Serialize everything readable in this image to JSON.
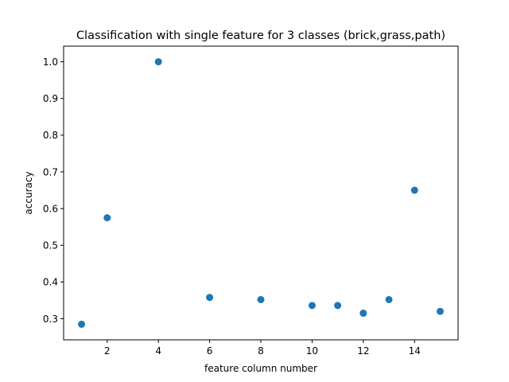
{
  "chart_data": {
    "type": "scatter",
    "title": "Classification with single feature for 3 classes (brick,grass,path)",
    "xlabel": "feature column number",
    "ylabel": "accuracy",
    "xlim": [
      0.3,
      15.7
    ],
    "ylim": [
      0.2425,
      1.0425
    ],
    "xticks": [
      2,
      4,
      6,
      8,
      10,
      12,
      14
    ],
    "yticks": [
      0.3,
      0.4,
      0.5,
      0.6,
      0.7,
      0.8,
      0.9,
      1.0
    ],
    "grid": false,
    "marker_color": "#1f77b4",
    "series": [
      {
        "x": [
          1,
          2,
          4,
          6,
          8,
          10,
          11,
          12,
          13,
          14,
          15
        ],
        "y": [
          0.285,
          0.575,
          1.0,
          0.358,
          0.352,
          0.336,
          0.336,
          0.315,
          0.352,
          0.65,
          0.32
        ]
      }
    ]
  }
}
